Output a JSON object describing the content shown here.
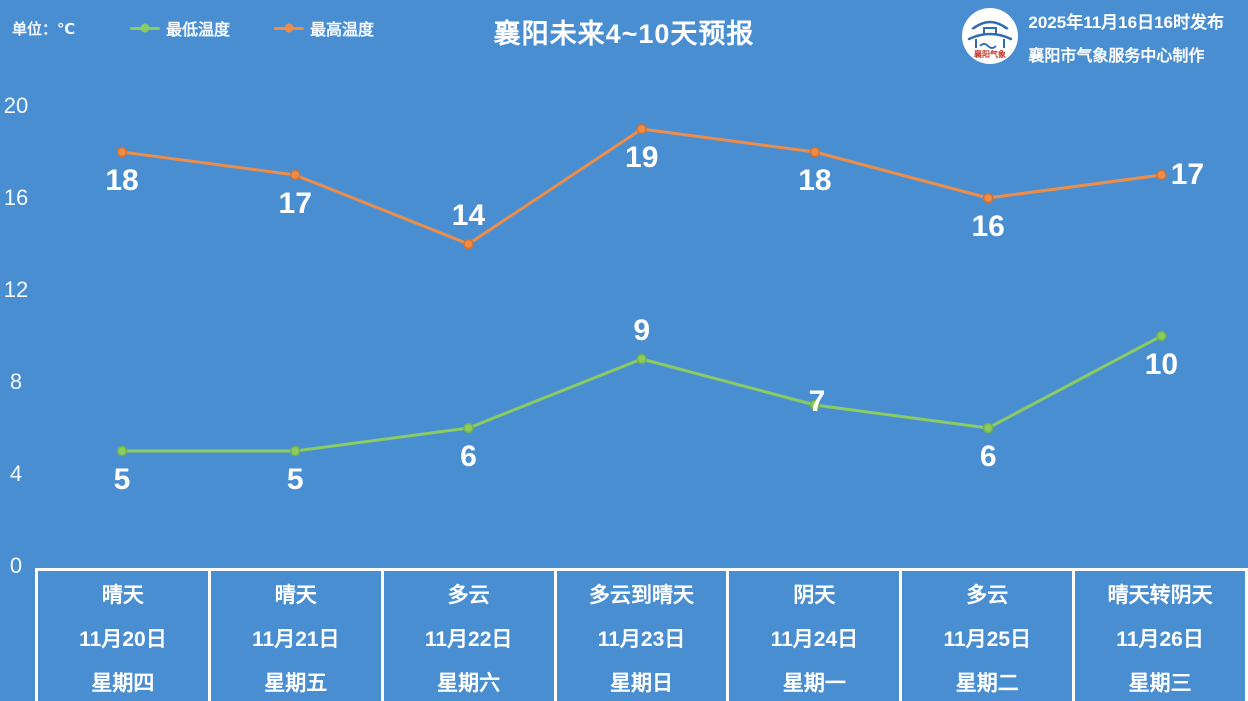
{
  "page": {
    "background": "#4a8ed2"
  },
  "header": {
    "unit_label": "单位：℃",
    "title": "襄阳未来4~10天预报",
    "publish_time": "2025年11月16日16时发布",
    "producer": "襄阳市气象服务中心制作",
    "logo_text": "襄阳气象"
  },
  "legend": {
    "low": {
      "label": "最低温度",
      "color": "#8ccb62"
    },
    "high": {
      "label": "最高温度",
      "color": "#ec8e49"
    }
  },
  "chart_data": {
    "type": "line",
    "title": "襄阳未来4~10天预报",
    "unit": "℃",
    "grid": false,
    "legend_position": "top-left",
    "y_ticks": [
      0,
      4,
      8,
      12,
      16,
      20
    ],
    "ylim": [
      0,
      24
    ],
    "categories": [
      {
        "weather": "晴天",
        "date": "11月20日",
        "weekday": "星期四"
      },
      {
        "weather": "晴天",
        "date": "11月21日",
        "weekday": "星期五"
      },
      {
        "weather": "多云",
        "date": "11月22日",
        "weekday": "星期六"
      },
      {
        "weather": "多云到晴天",
        "date": "11月23日",
        "weekday": "星期日"
      },
      {
        "weather": "阴天",
        "date": "11月24日",
        "weekday": "星期一"
      },
      {
        "weather": "多云",
        "date": "11月25日",
        "weekday": "星期二"
      },
      {
        "weather": "晴天转阴天",
        "date": "11月26日",
        "weekday": "星期三"
      }
    ],
    "series": [
      {
        "name": "最高温度",
        "color": "#ec8e49",
        "dot_edge": "#d4702b",
        "values": [
          18,
          17,
          14,
          19,
          18,
          16,
          17
        ],
        "label_placement": [
          "below",
          "below",
          "above",
          "below",
          "below",
          "below",
          "right"
        ]
      },
      {
        "name": "最低温度",
        "color": "#8ccb62",
        "dot_edge": "#6fb348",
        "values": [
          5,
          5,
          6,
          9,
          7,
          6,
          10
        ],
        "label_placement": [
          "below",
          "below",
          "below",
          "above",
          "center",
          "below",
          "below"
        ]
      }
    ]
  }
}
